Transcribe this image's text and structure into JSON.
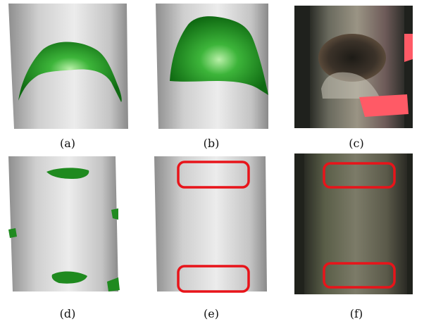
{
  "figure": {
    "panels": [
      {
        "label": "(a)",
        "kind": "3d-scan",
        "highlight": "green"
      },
      {
        "label": "(b)",
        "kind": "3d-scan",
        "highlight": "green"
      },
      {
        "label": "(c)",
        "kind": "photo"
      },
      {
        "label": "(d)",
        "kind": "3d-scan",
        "highlight": "green"
      },
      {
        "label": "(e)",
        "kind": "3d-scan",
        "highlight": "red-boxes"
      },
      {
        "label": "(f)",
        "kind": "photo",
        "highlight": "red-boxes"
      }
    ],
    "colors": {
      "scan_surface": "#d9d9d9",
      "defect_green": "#1f8a1f",
      "box_red": "#e8141a",
      "bark_dark": "#3a3a33",
      "paint_pink": "#ff5a66"
    }
  }
}
